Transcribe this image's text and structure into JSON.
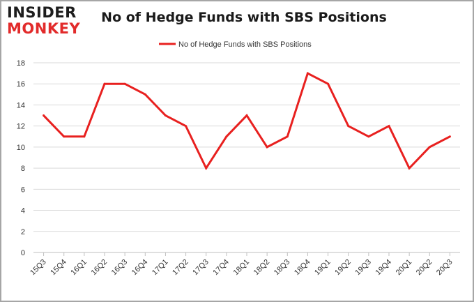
{
  "logo": {
    "line1": "INSIDER",
    "line2": "MONKEY"
  },
  "chart_data": {
    "type": "line",
    "title": "No of Hedge Funds with SBS Positions",
    "categories": [
      "15Q3",
      "15Q4",
      "16Q1",
      "16Q2",
      "16Q3",
      "16Q4",
      "17Q1",
      "17Q2",
      "17Q3",
      "17Q4",
      "18Q1",
      "18Q2",
      "18Q3",
      "18Q4",
      "19Q1",
      "19Q2",
      "19Q3",
      "19Q4",
      "20Q1",
      "20Q2",
      "20Q3"
    ],
    "series": [
      {
        "name": "No of Hedge Funds with SBS Positions",
        "values": [
          13,
          11,
          11,
          16,
          16,
          15,
          13,
          12,
          8,
          11,
          13,
          10,
          11,
          17,
          16,
          12,
          11,
          12,
          8,
          10,
          11
        ]
      }
    ],
    "ylim": [
      0,
      18
    ],
    "yticks": [
      0,
      2,
      4,
      6,
      8,
      10,
      12,
      14,
      16,
      18
    ],
    "grid": true,
    "legend": "top-center",
    "colors": {
      "line": "#e8201f",
      "grid": "#d9d9d9"
    }
  }
}
